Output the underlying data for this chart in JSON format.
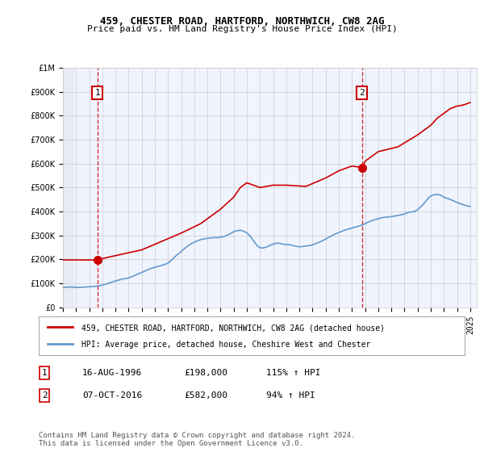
{
  "title": "459, CHESTER ROAD, HARTFORD, NORTHWICH, CW8 2AG",
  "subtitle": "Price paid vs. HM Land Registry's House Price Index (HPI)",
  "ylabel_ticks": [
    "£0",
    "£100K",
    "£200K",
    "£300K",
    "£400K",
    "£500K",
    "£600K",
    "£700K",
    "£800K",
    "£900K",
    "£1M"
  ],
  "ytick_vals": [
    0,
    100000,
    200000,
    300000,
    400000,
    500000,
    600000,
    700000,
    800000,
    900000,
    1000000
  ],
  "ylim": [
    0,
    1000000
  ],
  "xlim_start": 1994.0,
  "xlim_end": 2025.5,
  "xticks": [
    1994,
    1995,
    1996,
    1997,
    1998,
    1999,
    2000,
    2001,
    2002,
    2003,
    2004,
    2005,
    2006,
    2007,
    2008,
    2009,
    2010,
    2011,
    2012,
    2013,
    2014,
    2015,
    2016,
    2017,
    2018,
    2019,
    2020,
    2021,
    2022,
    2023,
    2024,
    2025
  ],
  "sale1_x": 1996.622,
  "sale1_y": 198000,
  "sale1_label": "1",
  "sale2_x": 2016.767,
  "sale2_y": 582000,
  "sale2_label": "2",
  "sale_color": "#cc0000",
  "hpi_color": "#6699cc",
  "dashed_color": "#cc0000",
  "bg_color": "#ffffff",
  "plot_bg": "#f0f4ff",
  "hatch_bg": "#e8ecf5",
  "grid_color": "#cccccc",
  "legend_entry1": "459, CHESTER ROAD, HARTFORD, NORTHWICH, CW8 2AG (detached house)",
  "legend_entry2": "HPI: Average price, detached house, Cheshire West and Chester",
  "table_row1": [
    "1",
    "16-AUG-1996",
    "£198,000",
    "115% ↑ HPI"
  ],
  "table_row2": [
    "2",
    "07-OCT-2016",
    "£582,000",
    "94% ↑ HPI"
  ],
  "footer": "Contains HM Land Registry data © Crown copyright and database right 2024.\nThis data is licensed under the Open Government Licence v3.0.",
  "hpi_data": {
    "years": [
      1994.0,
      1994.25,
      1994.5,
      1994.75,
      1995.0,
      1995.25,
      1995.5,
      1995.75,
      1996.0,
      1996.25,
      1996.5,
      1996.75,
      1997.0,
      1997.25,
      1997.5,
      1997.75,
      1998.0,
      1998.25,
      1998.5,
      1998.75,
      1999.0,
      1999.25,
      1999.5,
      1999.75,
      2000.0,
      2000.25,
      2000.5,
      2000.75,
      2001.0,
      2001.25,
      2001.5,
      2001.75,
      2002.0,
      2002.25,
      2002.5,
      2002.75,
      2003.0,
      2003.25,
      2003.5,
      2003.75,
      2004.0,
      2004.25,
      2004.5,
      2004.75,
      2005.0,
      2005.25,
      2005.5,
      2005.75,
      2006.0,
      2006.25,
      2006.5,
      2006.75,
      2007.0,
      2007.25,
      2007.5,
      2007.75,
      2008.0,
      2008.25,
      2008.5,
      2008.75,
      2009.0,
      2009.25,
      2009.5,
      2009.75,
      2010.0,
      2010.25,
      2010.5,
      2010.75,
      2011.0,
      2011.25,
      2011.5,
      2011.75,
      2012.0,
      2012.25,
      2012.5,
      2012.75,
      2013.0,
      2013.25,
      2013.5,
      2013.75,
      2014.0,
      2014.25,
      2014.5,
      2014.75,
      2015.0,
      2015.25,
      2015.5,
      2015.75,
      2016.0,
      2016.25,
      2016.5,
      2016.75,
      2017.0,
      2017.25,
      2017.5,
      2017.75,
      2018.0,
      2018.25,
      2018.5,
      2018.75,
      2019.0,
      2019.25,
      2019.5,
      2019.75,
      2020.0,
      2020.25,
      2020.5,
      2020.75,
      2021.0,
      2021.25,
      2021.5,
      2021.75,
      2022.0,
      2022.25,
      2022.5,
      2022.75,
      2023.0,
      2023.25,
      2023.5,
      2023.75,
      2024.0,
      2024.25,
      2024.5,
      2024.75,
      2025.0
    ],
    "values": [
      83000,
      84000,
      84500,
      85000,
      83000,
      83500,
      84000,
      85000,
      86000,
      87000,
      88000,
      90000,
      93000,
      97000,
      101000,
      106000,
      110000,
      114000,
      118000,
      120000,
      123000,
      128000,
      134000,
      140000,
      146000,
      152000,
      158000,
      163000,
      167000,
      171000,
      175000,
      179000,
      185000,
      196000,
      210000,
      222000,
      233000,
      245000,
      256000,
      265000,
      272000,
      278000,
      283000,
      286000,
      288000,
      290000,
      291000,
      291000,
      293000,
      296000,
      301000,
      308000,
      316000,
      320000,
      322000,
      318000,
      311000,
      298000,
      278000,
      260000,
      248000,
      248000,
      252000,
      258000,
      264000,
      268000,
      268000,
      264000,
      262000,
      262000,
      258000,
      255000,
      253000,
      254000,
      256000,
      258000,
      261000,
      266000,
      272000,
      278000,
      285000,
      293000,
      300000,
      307000,
      312000,
      318000,
      323000,
      327000,
      331000,
      335000,
      339000,
      343000,
      349000,
      356000,
      362000,
      366000,
      370000,
      374000,
      376000,
      377000,
      379000,
      381000,
      384000,
      386000,
      390000,
      396000,
      398000,
      400000,
      408000,
      420000,
      435000,
      452000,
      465000,
      470000,
      472000,
      468000,
      460000,
      455000,
      450000,
      444000,
      438000,
      433000,
      428000,
      424000,
      421000
    ],
    "sale_line_data_x": [
      1994.0,
      1996.622,
      1996.622,
      1997.5,
      2000.0,
      2003.0,
      2004.5,
      2006.0,
      2007.0,
      2007.5,
      2008.0,
      2009.0,
      2010.0,
      2011.0,
      2012.5,
      2014.0,
      2015.0,
      2016.0,
      2016.622,
      2016.767,
      2017.0,
      2018.0,
      2019.5,
      2021.0,
      2022.0,
      2022.5,
      2023.0,
      2023.5,
      2024.0,
      2024.5,
      2025.0
    ],
    "sale_line_data_y": [
      198000,
      198000,
      198000,
      210000,
      240000,
      310000,
      350000,
      410000,
      460000,
      500000,
      520000,
      500000,
      510000,
      510000,
      505000,
      540000,
      570000,
      590000,
      585000,
      582000,
      610000,
      650000,
      670000,
      720000,
      760000,
      790000,
      810000,
      830000,
      840000,
      845000,
      855000
    ]
  }
}
